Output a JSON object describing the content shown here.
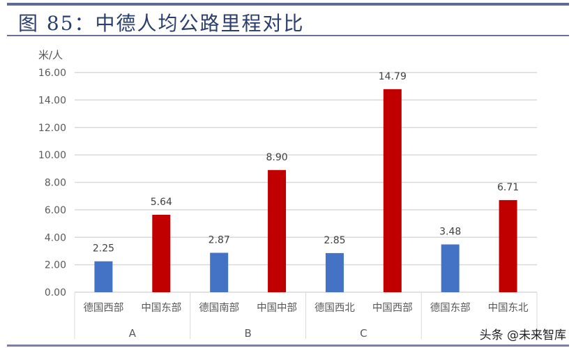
{
  "title": "图 85：中德人均公路里程对比",
  "watermark": "头条 @未来智库",
  "chart_data": {
    "type": "bar",
    "ylabel": "米/人",
    "ylim": [
      0,
      16
    ],
    "yticks": [
      "0.00",
      "2.00",
      "4.00",
      "6.00",
      "8.00",
      "10.00",
      "12.00",
      "14.00",
      "16.00"
    ],
    "grid": true,
    "groups": [
      "A",
      "B",
      "C",
      ""
    ],
    "categories": [
      "德国西部",
      "中国东部",
      "德国南部",
      "中国中部",
      "德国西北",
      "中国西部",
      "德国东部",
      "中国东北"
    ],
    "values": [
      2.25,
      5.64,
      2.87,
      8.9,
      2.85,
      14.79,
      3.48,
      6.71
    ],
    "data_labels": [
      "2.25",
      "5.64",
      "2.87",
      "8.90",
      "2.85",
      "14.79",
      "3.48",
      "6.71"
    ],
    "colors": {
      "germany": "#4472c4",
      "china": "#c00000"
    }
  }
}
